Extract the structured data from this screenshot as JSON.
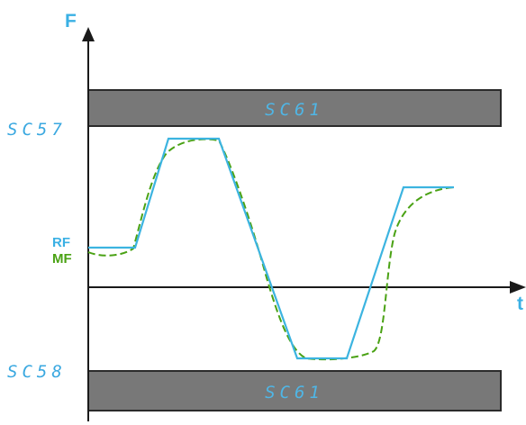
{
  "axes": {
    "y_label": "F",
    "x_label": "t"
  },
  "bands": {
    "upper_label": "SC61",
    "lower_label": "SC61"
  },
  "levels": {
    "upper": "SC57",
    "lower": "SC58"
  },
  "signals": {
    "rf_label": "RF",
    "mf_label": "MF"
  },
  "colors": {
    "band_fill": "#787878",
    "rf": "#3cb4e0",
    "mf": "#4aa214",
    "text_blue": "#3ab0e4"
  }
}
